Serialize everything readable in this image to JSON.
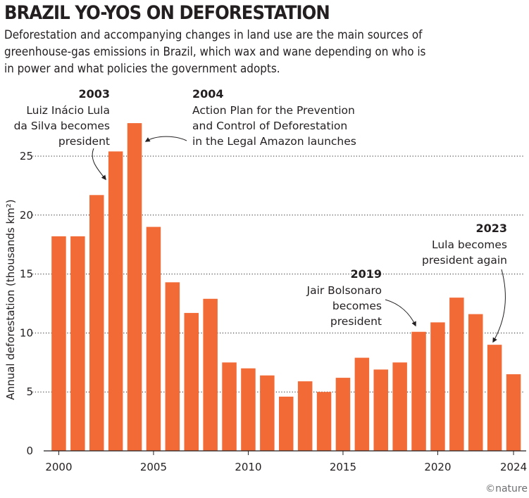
{
  "header": {
    "title": "BRAZIL YO-YOS ON DEFORESTATION",
    "subtitle": "Deforestation and accompanying changes in land use are the main sources of\ngreenhouse-gas emissions in Brazil, which wax and wane depending on who is\nin power and what policies the government adopts."
  },
  "chart_data": {
    "type": "bar",
    "title": "BRAZIL YO-YOS ON DEFORESTATION",
    "ylabel": "Annual deforestation (thousands km²)",
    "xlabel": "",
    "categories": [
      2000,
      2001,
      2002,
      2003,
      2004,
      2005,
      2006,
      2007,
      2008,
      2009,
      2010,
      2011,
      2012,
      2013,
      2014,
      2015,
      2016,
      2017,
      2018,
      2019,
      2020,
      2021,
      2022,
      2023,
      2024
    ],
    "values": [
      18.2,
      18.2,
      21.7,
      25.4,
      27.8,
      19.0,
      14.3,
      11.7,
      12.9,
      7.5,
      7.0,
      6.4,
      4.6,
      5.9,
      5.0,
      6.2,
      7.9,
      6.9,
      7.5,
      10.1,
      10.9,
      13.0,
      11.6,
      9.0,
      6.5
    ],
    "ylim": [
      0,
      28
    ],
    "yticks": [
      0,
      5,
      10,
      15,
      20,
      25
    ],
    "xticks": [
      2000,
      2005,
      2010,
      2015,
      2020,
      2024
    ],
    "grid": true,
    "bar_color": "#f26a36",
    "annotations": [
      {
        "year": "2003",
        "text": [
          "Luiz Inácio Lula",
          "da Silva becomes",
          "president"
        ]
      },
      {
        "year": "2004",
        "text": [
          "Action Plan for the Prevention",
          "and Control of Deforestation",
          "in the Legal Amazon launches"
        ]
      },
      {
        "year": "2019",
        "text": [
          "Jair Bolsonaro",
          "becomes",
          "president"
        ]
      },
      {
        "year": "2023",
        "text": [
          "Lula becomes",
          "president again"
        ]
      }
    ],
    "credit": "©nature"
  }
}
